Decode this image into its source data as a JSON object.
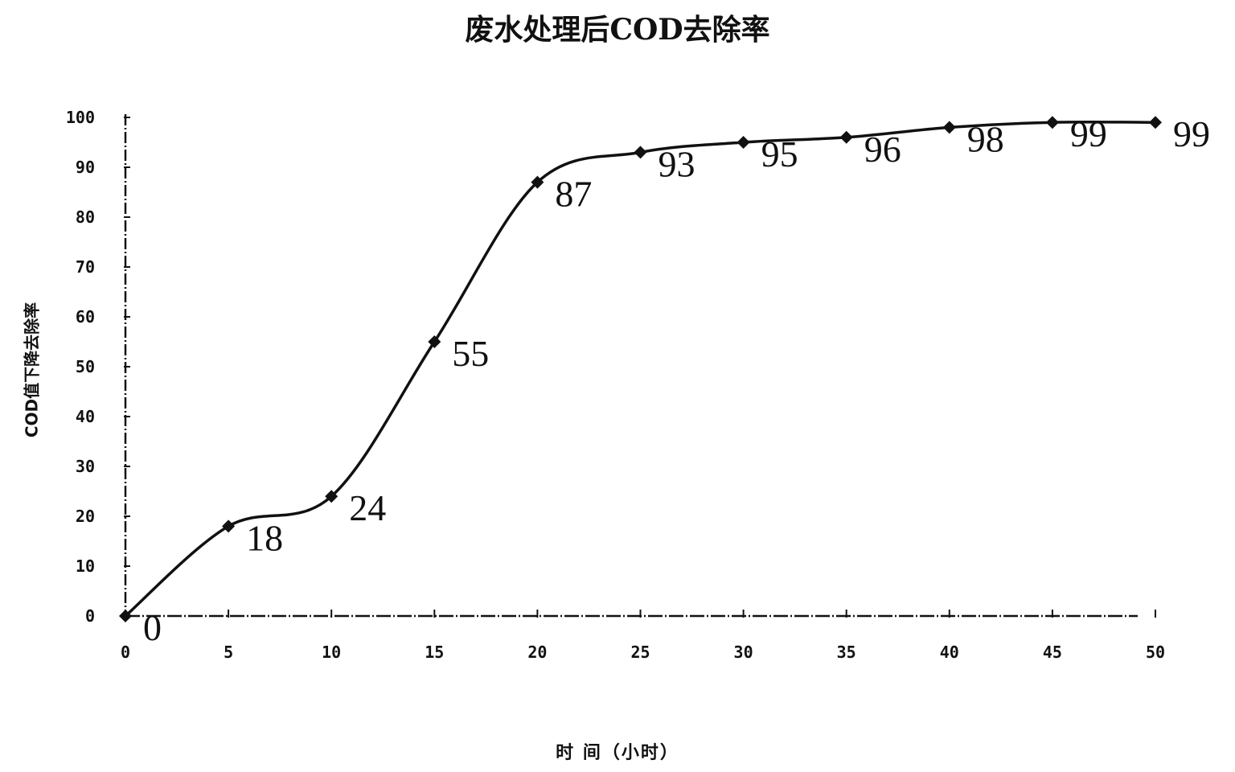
{
  "chart_data": {
    "type": "line",
    "title": "废水处理后COD去除率",
    "xlabel": "时 间（小时）",
    "ylabel": "COD值下降去除率",
    "x": [
      0,
      5,
      10,
      15,
      20,
      25,
      30,
      35,
      40,
      45,
      50
    ],
    "series": [
      {
        "values": [
          0,
          18,
          24,
          55,
          87,
          93,
          95,
          96,
          98,
          99,
          99
        ]
      }
    ],
    "data_labels": [
      "0",
      "18",
      "24",
      "55",
      "87",
      "93",
      "95",
      "96",
      "98",
      "99",
      "99"
    ],
    "x_ticks": [
      "0",
      "5",
      "10",
      "15",
      "20",
      "25",
      "30",
      "35",
      "40",
      "45",
      "50"
    ],
    "y_ticks": [
      "0",
      "10",
      "20",
      "30",
      "40",
      "50",
      "60",
      "70",
      "80",
      "90",
      "100"
    ],
    "xlim": [
      0,
      50
    ],
    "ylim": [
      0,
      100
    ],
    "grid": false,
    "legend": "none",
    "line_color": "#111111",
    "marker": "diamond"
  }
}
